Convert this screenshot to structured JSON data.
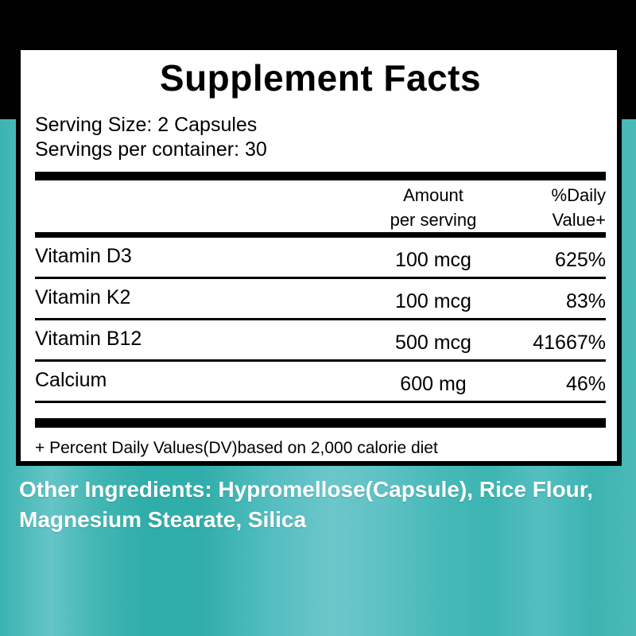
{
  "colors": {
    "top_band": "#000000",
    "panel_background": "#ffffff",
    "panel_border": "#000000",
    "panel_text": "#000000",
    "teal_dark": "#2fadaa",
    "teal_mid": "#45b8b6",
    "teal_light": "#6cc6ca",
    "ingredients_text": "#ffffff"
  },
  "panel": {
    "title": "Supplement Facts",
    "serving_size": "Serving Size: 2 Capsules",
    "servings_per_container": "Servings per container: 30",
    "header": {
      "amount": [
        "Amount",
        "per serving"
      ],
      "daily_value": [
        "%Daily",
        "Value+"
      ]
    },
    "rows": [
      {
        "name": "Vitamin D3",
        "amount": "100 mcg",
        "dv": "625%"
      },
      {
        "name": "Vitamin K2",
        "amount": "100 mcg",
        "dv": "83%"
      },
      {
        "name": "Vitamin B12",
        "amount": "500 mcg",
        "dv": "41667%"
      },
      {
        "name": "Calcium",
        "amount": "600 mg",
        "dv": "46%"
      }
    ],
    "footnote": "+ Percent Daily Values(DV)based on 2,000 calorie diet"
  },
  "other_ingredients": {
    "lines": [
      "Other Ingredients: Hypromellose(Capsule), Rice Flour,",
      "Magnesium Stearate, Silica"
    ]
  }
}
